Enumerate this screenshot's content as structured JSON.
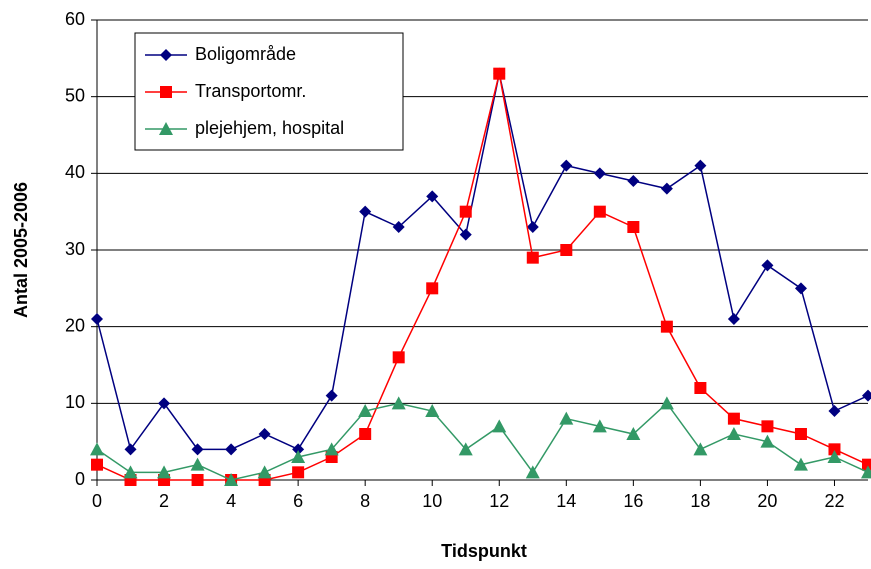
{
  "chart_data": {
    "type": "line",
    "x_label": "Tidspunkt",
    "y_label": "Antal 2005-2006",
    "x": [
      0,
      1,
      2,
      3,
      4,
      5,
      6,
      7,
      8,
      9,
      10,
      11,
      12,
      13,
      14,
      15,
      16,
      17,
      18,
      19,
      20,
      21,
      22,
      23
    ],
    "series": [
      {
        "name": "Boligområde",
        "color": "#000080",
        "marker": "diamond",
        "values": [
          21,
          4,
          10,
          4,
          4,
          6,
          4,
          11,
          35,
          33,
          37,
          32,
          53,
          33,
          41,
          40,
          39,
          38,
          41,
          21,
          28,
          25,
          9,
          11
        ]
      },
      {
        "name": "Transportomr.",
        "color": "#ff0000",
        "marker": "square",
        "values": [
          2,
          0,
          0,
          0,
          0,
          0,
          1,
          3,
          6,
          16,
          25,
          35,
          53,
          29,
          30,
          35,
          33,
          20,
          12,
          8,
          7,
          6,
          4,
          2
        ]
      },
      {
        "name": "plejehjem, hospital",
        "color": "#339966",
        "marker": "triangle",
        "values": [
          4,
          1,
          1,
          2,
          0,
          1,
          3,
          4,
          9,
          10,
          9,
          4,
          7,
          1,
          8,
          7,
          6,
          10,
          4,
          6,
          5,
          2,
          3,
          1
        ]
      }
    ],
    "xlim": [
      0,
      23
    ],
    "xticks": [
      0,
      2,
      4,
      6,
      8,
      10,
      12,
      14,
      16,
      18,
      20,
      22
    ],
    "ylim": [
      0,
      60
    ],
    "yticks": [
      0,
      10,
      20,
      30,
      40,
      50,
      60
    ],
    "grid": true,
    "legend": "upper left"
  }
}
